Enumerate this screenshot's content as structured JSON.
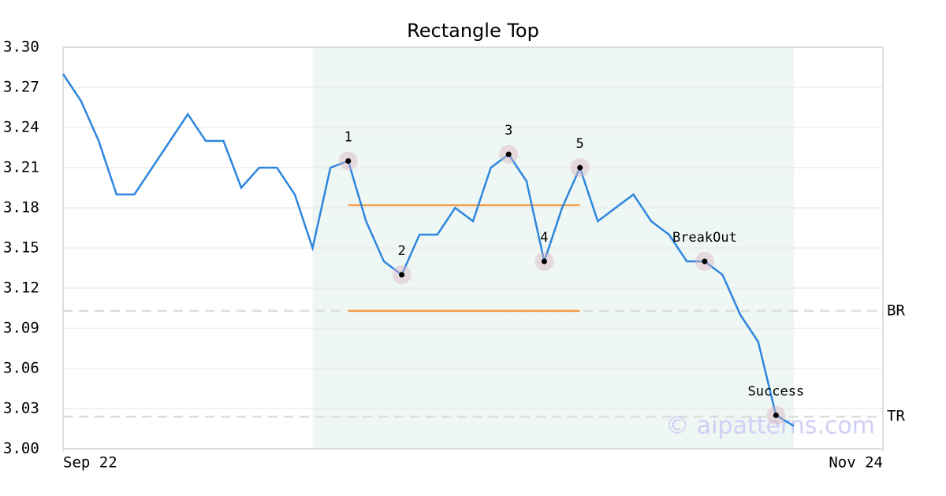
{
  "chart_data": {
    "type": "line",
    "title": "Rectangle Top",
    "x": [
      0,
      1,
      2,
      3,
      4,
      5,
      6,
      7,
      8,
      9,
      10,
      11,
      12,
      13,
      14,
      15,
      16,
      17,
      18,
      19,
      20,
      21,
      22,
      23,
      24,
      25,
      26,
      27,
      28,
      29,
      30,
      31,
      32,
      33,
      34,
      35,
      36,
      37,
      38,
      39,
      40,
      41
    ],
    "series": [
      {
        "color": "#2e86de",
        "values": [
          3.28,
          3.26,
          3.23,
          3.19,
          3.19,
          3.21,
          3.23,
          3.25,
          3.23,
          3.23,
          3.195,
          3.21,
          3.21,
          3.19,
          3.15,
          3.21,
          3.215,
          3.17,
          3.14,
          3.13,
          3.16,
          3.16,
          3.18,
          3.17,
          3.21,
          3.22,
          3.2,
          3.14,
          3.18,
          3.21,
          3.17,
          3.18,
          3.19,
          3.17,
          3.16,
          3.14,
          3.14,
          3.13,
          3.1,
          3.08,
          3.025,
          3.017
        ]
      }
    ],
    "xlim": [
      0,
      46
    ],
    "xticks": [
      {
        "value": 0,
        "label": "Sep 22"
      },
      {
        "value": 46,
        "label": "Nov 24"
      }
    ],
    "ylim": [
      3.0,
      3.3
    ],
    "yticks": [
      {
        "value": 3.0,
        "label": "3.00"
      },
      3.03,
      3.06,
      3.09,
      3.12,
      3.15,
      3.18,
      3.21,
      3.24,
      3.27,
      {
        "value": 3.3,
        "label": "3.30"
      }
    ],
    "grid": true,
    "shade": {
      "x": [
        14,
        41
      ],
      "color": "#eef7f3"
    },
    "rectangle": {
      "x": [
        16,
        29
      ],
      "top": 3.182,
      "bottom": 3.103,
      "color": "#f39c44"
    },
    "levels": [
      {
        "label": "BR",
        "value": 3.103
      },
      {
        "label": "TR",
        "value": 3.024
      }
    ],
    "points": [
      {
        "label": "1",
        "x": 16,
        "y": 3.215
      },
      {
        "label": "2",
        "x": 19,
        "y": 3.13
      },
      {
        "label": "3",
        "x": 25,
        "y": 3.22
      },
      {
        "label": "4",
        "x": 27,
        "y": 3.14
      },
      {
        "label": "5",
        "x": 29,
        "y": 3.21
      },
      {
        "label": "BreakOut",
        "x": 36,
        "y": 3.14
      },
      {
        "label": "Success",
        "x": 40,
        "y": 3.025
      }
    ],
    "watermark": "© aipatterns.com"
  }
}
